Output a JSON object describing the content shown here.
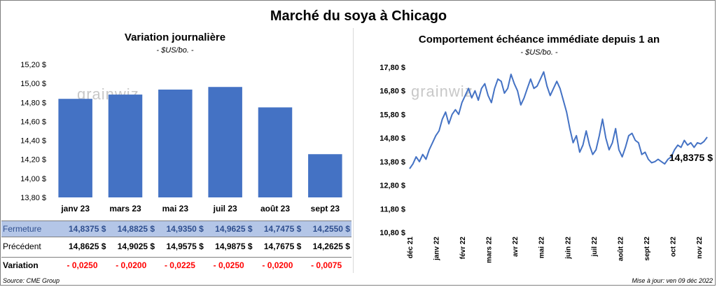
{
  "title": "Marché du soya à Chicago",
  "left": {
    "title": "Variation  journalière",
    "subtitle": "- $US/bo. -",
    "watermark": "grainwiz"
  },
  "right": {
    "title": "Comportement  échéance immédiate depuis 1 an",
    "subtitle": "- $US/bo. -",
    "watermark": "grainwiz",
    "last_value_label": "14,8375 $"
  },
  "table": {
    "rows": [
      {
        "label": "Fermeture",
        "values": [
          "14,8375 $",
          "14,8825 $",
          "14,9350 $",
          "14,9625 $",
          "14,7475 $",
          "14,2550 $"
        ]
      },
      {
        "label": "Précédent",
        "values": [
          "14,8625 $",
          "14,9025 $",
          "14,9575 $",
          "14,9875 $",
          "14,7675 $",
          "14,2625 $"
        ]
      },
      {
        "label": "Variation",
        "values": [
          "- 0,0250",
          "- 0,0200",
          "- 0,0225",
          "- 0,0250",
          "- 0,0200",
          "- 0,0075"
        ]
      }
    ]
  },
  "footer": {
    "source": "Source: CME Group",
    "updated": "Mise à jour: ven 09 déc 2022"
  },
  "chart_data": [
    {
      "type": "bar",
      "title": "Variation  journalière",
      "subtitle": "- $US/bo. -",
      "categories": [
        "janv 23",
        "mars 23",
        "mai 23",
        "juil 23",
        "août 23",
        "sept 23"
      ],
      "values": [
        14.8375,
        14.8825,
        14.935,
        14.9625,
        14.7475,
        14.255
      ],
      "ylim": [
        13.8,
        15.2
      ],
      "yticks": [
        "13,80 $",
        "14,00 $",
        "14,20 $",
        "14,40 $",
        "14,60 $",
        "14,80 $",
        "15,00 $",
        "15,20 $"
      ],
      "ytick_values": [
        13.8,
        14.0,
        14.2,
        14.4,
        14.6,
        14.8,
        15.0,
        15.2
      ],
      "color": "#4472c4",
      "grid": false
    },
    {
      "type": "line",
      "title": "Comportement  échéance immédiate depuis 1 an",
      "subtitle": "- $US/bo. -",
      "xticks": [
        "déc 21",
        "janv 22",
        "févr 22",
        "mars 22",
        "avr 22",
        "mai 22",
        "juin 22",
        "juil 22",
        "août 22",
        "sept 22",
        "oct 22",
        "nov 22"
      ],
      "ylim": [
        10.8,
        17.8
      ],
      "yticks": [
        "10,80 $",
        "11,80 $",
        "12,80 $",
        "13,80 $",
        "14,80 $",
        "15,80 $",
        "16,80 $",
        "17,80 $"
      ],
      "ytick_values": [
        10.8,
        11.8,
        12.8,
        13.8,
        14.8,
        15.8,
        16.8,
        17.8
      ],
      "color": "#4472c4",
      "grid": false,
      "x": [
        0,
        4,
        8,
        12,
        16,
        20,
        24,
        28,
        32,
        36,
        40,
        44,
        48,
        52,
        56,
        60,
        64,
        68,
        72,
        76,
        80,
        84,
        88,
        92,
        96,
        100,
        104,
        108,
        112,
        116,
        120,
        124,
        128,
        132,
        136,
        140,
        144,
        148,
        152,
        156,
        160,
        164,
        168,
        172,
        176,
        180,
        184,
        188,
        192,
        196,
        200,
        204,
        208,
        212,
        216,
        220,
        224,
        228,
        232,
        236,
        240,
        244,
        248,
        252,
        256,
        260,
        264,
        268,
        272,
        276,
        280,
        284,
        288,
        292,
        296,
        300,
        304,
        308,
        312,
        316,
        320,
        324,
        328,
        332,
        336,
        340,
        344,
        348,
        352,
        356,
        360,
        364
      ],
      "values": [
        13.5,
        13.7,
        14.0,
        13.8,
        14.1,
        13.9,
        14.3,
        14.6,
        14.9,
        15.1,
        15.6,
        15.9,
        15.4,
        15.8,
        16.0,
        15.8,
        16.3,
        16.6,
        16.9,
        16.5,
        16.8,
        16.4,
        16.9,
        17.1,
        16.6,
        16.3,
        16.9,
        17.3,
        17.2,
        16.7,
        16.9,
        17.5,
        17.1,
        16.8,
        16.2,
        16.5,
        16.9,
        17.3,
        16.9,
        17.0,
        17.3,
        17.6,
        17.0,
        16.6,
        16.9,
        17.2,
        16.9,
        16.4,
        15.9,
        15.2,
        14.6,
        14.9,
        14.2,
        14.5,
        15.1,
        14.5,
        14.1,
        14.3,
        14.9,
        15.6,
        14.8,
        14.3,
        14.6,
        15.2,
        14.3,
        14.0,
        14.4,
        14.9,
        15.0,
        14.7,
        14.6,
        14.1,
        14.2,
        13.9,
        13.75,
        13.8,
        13.9,
        13.8,
        13.7,
        13.9,
        14.0,
        14.3,
        14.5,
        14.4,
        14.7,
        14.5,
        14.6,
        14.4,
        14.6,
        14.55,
        14.65,
        14.8375
      ]
    }
  ]
}
